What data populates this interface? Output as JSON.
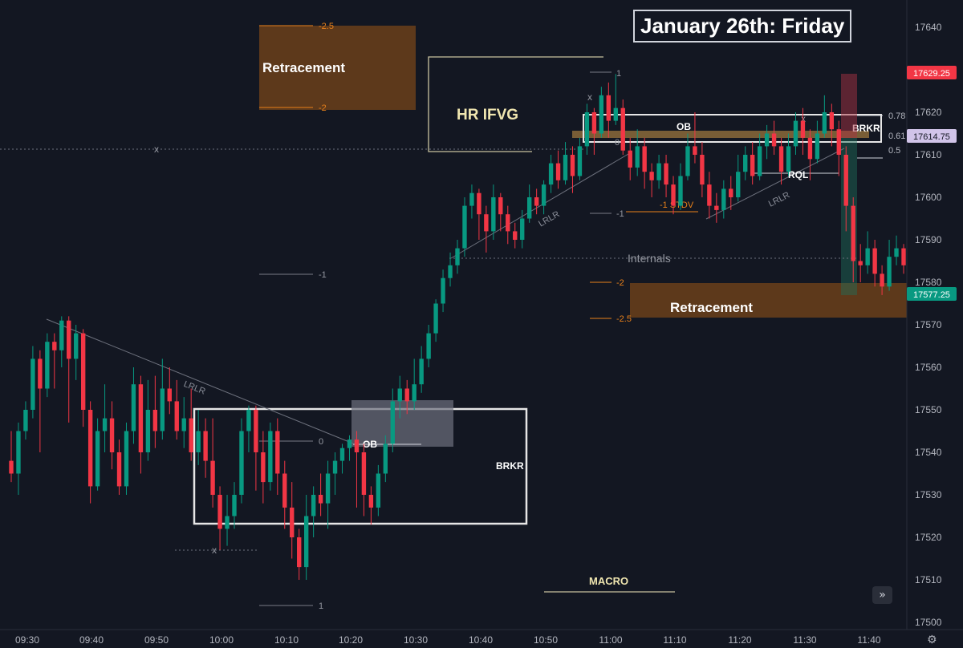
{
  "title": "January 26th: Friday",
  "chart_data": {
    "type": "candlestick",
    "yaxis": {
      "ticks": [
        17500,
        17510,
        17520,
        17530,
        17540,
        17550,
        17560,
        17570,
        17580,
        17590,
        17600,
        17610,
        17620,
        17630,
        17640
      ],
      "range": [
        17499,
        17642
      ]
    },
    "xaxis": {
      "ticks": [
        "09:30",
        "09:40",
        "09:50",
        "10:00",
        "10:10",
        "10:20",
        "10:30",
        "10:40",
        "10:50",
        "11:00",
        "11:10",
        "11:20",
        "11:30",
        "11:40"
      ]
    },
    "price_labels": [
      {
        "text": "17629.25",
        "color": "#f23645"
      },
      {
        "text": "17614.75",
        "color": "#d1c4e9"
      },
      {
        "text": "17577.25",
        "color": "#089981"
      }
    ],
    "candles": [
      [
        17538,
        17535,
        17545,
        17533
      ],
      [
        17535,
        17545,
        17547,
        17530
      ],
      [
        17545,
        17550,
        17552,
        17543
      ],
      [
        17550,
        17562,
        17565,
        17548
      ],
      [
        17562,
        17555,
        17564,
        17540
      ],
      [
        17555,
        17566,
        17568,
        17553
      ],
      [
        17566,
        17564,
        17568,
        17555
      ],
      [
        17564,
        17571,
        17572,
        17560
      ],
      [
        17571,
        17562,
        17572,
        17547
      ],
      [
        17562,
        17568,
        17570,
        17557
      ],
      [
        17568,
        17550,
        17569,
        17546
      ],
      [
        17550,
        17532,
        17552,
        17528
      ],
      [
        17532,
        17545,
        17548,
        17531
      ],
      [
        17545,
        17548,
        17556,
        17540
      ],
      [
        17548,
        17540,
        17552,
        17536
      ],
      [
        17540,
        17532,
        17543,
        17530
      ],
      [
        17532,
        17545,
        17547,
        17530
      ],
      [
        17545,
        17556,
        17560,
        17542
      ],
      [
        17556,
        17540,
        17558,
        17535
      ],
      [
        17540,
        17550,
        17557,
        17538
      ],
      [
        17550,
        17545,
        17558,
        17541
      ],
      [
        17545,
        17555,
        17562,
        17543
      ],
      [
        17555,
        17552,
        17560,
        17549
      ],
      [
        17552,
        17545,
        17557,
        17543
      ],
      [
        17545,
        17548,
        17553,
        17541
      ],
      [
        17548,
        17540,
        17555,
        17538
      ],
      [
        17540,
        17545,
        17550,
        17537
      ],
      [
        17545,
        17538,
        17548,
        17534
      ],
      [
        17538,
        17530,
        17548,
        17527
      ],
      [
        17530,
        17522,
        17532,
        17517
      ],
      [
        17522,
        17525,
        17530,
        17518
      ],
      [
        17525,
        17530,
        17533,
        17522
      ],
      [
        17530,
        17545,
        17548,
        17528
      ],
      [
        17545,
        17550,
        17551,
        17540
      ],
      [
        17550,
        17540,
        17551,
        17531
      ],
      [
        17540,
        17533,
        17545,
        17528
      ],
      [
        17533,
        17545,
        17547,
        17531
      ],
      [
        17545,
        17535,
        17548,
        17530
      ],
      [
        17535,
        17527,
        17538,
        17522
      ],
      [
        17527,
        17520,
        17533,
        17515
      ],
      [
        17520,
        17513,
        17522,
        17510
      ],
      [
        17513,
        17525,
        17530,
        17510
      ],
      [
        17525,
        17530,
        17532,
        17520
      ],
      [
        17530,
        17528,
        17535,
        17525
      ],
      [
        17528,
        17535,
        17538,
        17522
      ],
      [
        17535,
        17538,
        17540,
        17530
      ],
      [
        17538,
        17541,
        17542,
        17535
      ],
      [
        17541,
        17543,
        17544,
        17538
      ],
      [
        17543,
        17540,
        17545,
        17527
      ],
      [
        17540,
        17530,
        17542,
        17525
      ],
      [
        17530,
        17527,
        17532,
        17523
      ],
      [
        17527,
        17535,
        17537,
        17525
      ],
      [
        17535,
        17542,
        17544,
        17533
      ],
      [
        17542,
        17552,
        17555,
        17540
      ],
      [
        17552,
        17555,
        17558,
        17548
      ],
      [
        17555,
        17552,
        17557,
        17549
      ],
      [
        17552,
        17556,
        17562,
        17550
      ],
      [
        17556,
        17562,
        17565,
        17554
      ],
      [
        17562,
        17568,
        17570,
        17560
      ],
      [
        17568,
        17575,
        17576,
        17566
      ],
      [
        17575,
        17581,
        17583,
        17573
      ],
      [
        17581,
        17584,
        17587,
        17579
      ],
      [
        17584,
        17588,
        17590,
        17582
      ],
      [
        17588,
        17598,
        17600,
        17586
      ],
      [
        17598,
        17601,
        17603,
        17595
      ],
      [
        17601,
        17596,
        17602,
        17590
      ],
      [
        17596,
        17592,
        17598,
        17587
      ],
      [
        17592,
        17600,
        17603,
        17590
      ],
      [
        17600,
        17596,
        17601,
        17592
      ],
      [
        17596,
        17592,
        17598,
        17589
      ],
      [
        17592,
        17590,
        17594,
        17588
      ],
      [
        17590,
        17595,
        17597,
        17588
      ],
      [
        17595,
        17600,
        17603,
        17594
      ],
      [
        17600,
        17598,
        17602,
        17596
      ],
      [
        17598,
        17603,
        17604,
        17596
      ],
      [
        17603,
        17608,
        17610,
        17601
      ],
      [
        17608,
        17604,
        17611,
        17602
      ],
      [
        17604,
        17610,
        17613,
        17603
      ],
      [
        17610,
        17605,
        17612,
        17601
      ],
      [
        17605,
        17612,
        17614,
        17604
      ],
      [
        17612,
        17620,
        17622,
        17610
      ],
      [
        17620,
        17615,
        17621,
        17610
      ],
      [
        17615,
        17624,
        17626,
        17614
      ],
      [
        17624,
        17618,
        17627,
        17614
      ],
      [
        17618,
        17621,
        17629,
        17617
      ],
      [
        17621,
        17611,
        17623,
        17610
      ],
      [
        17611,
        17607,
        17614,
        17604
      ],
      [
        17607,
        17612,
        17616,
        17605
      ],
      [
        17612,
        17606,
        17614,
        17602
      ],
      [
        17606,
        17604,
        17608,
        17600
      ],
      [
        17604,
        17608,
        17610,
        17602
      ],
      [
        17608,
        17603,
        17610,
        17600
      ],
      [
        17603,
        17598,
        17605,
        17596
      ],
      [
        17598,
        17605,
        17608,
        17597
      ],
      [
        17605,
        17612,
        17615,
        17604
      ],
      [
        17612,
        17610,
        17620,
        17608
      ],
      [
        17610,
        17603,
        17613,
        17600
      ],
      [
        17603,
        17598,
        17606,
        17595
      ],
      [
        17598,
        17597,
        17601,
        17594
      ],
      [
        17597,
        17602,
        17604,
        17595
      ],
      [
        17602,
        17600,
        17605,
        17597
      ],
      [
        17600,
        17606,
        17610,
        17599
      ],
      [
        17606,
        17610,
        17612,
        17604
      ],
      [
        17610,
        17605,
        17613,
        17603
      ],
      [
        17605,
        17612,
        17615,
        17604
      ],
      [
        17612,
        17615,
        17617,
        17609
      ],
      [
        17615,
        17612,
        17618,
        17610
      ],
      [
        17612,
        17606,
        17614,
        17603
      ],
      [
        17606,
        17612,
        17615,
        17605
      ],
      [
        17612,
        17618,
        17620,
        17610
      ],
      [
        17618,
        17614,
        17621,
        17610
      ],
      [
        17614,
        17609,
        17616,
        17604
      ],
      [
        17609,
        17615,
        17618,
        17608
      ],
      [
        17615,
        17620,
        17624,
        17614
      ],
      [
        17620,
        17616,
        17622,
        17612
      ],
      [
        17616,
        17610,
        17618,
        17605
      ],
      [
        17610,
        17598,
        17612,
        17592
      ],
      [
        17598,
        17585,
        17600,
        17580
      ],
      [
        17585,
        17584,
        17589,
        17580
      ],
      [
        17584,
        17588,
        17592,
        17582
      ],
      [
        17588,
        17582,
        17590,
        17579
      ],
      [
        17582,
        17579,
        17584,
        17577
      ],
      [
        17579,
        17586,
        17590,
        17578
      ],
      [
        17586,
        17588,
        17591,
        17584
      ],
      [
        17588,
        17584,
        17589,
        17582
      ]
    ]
  },
  "annotations": {
    "hr_ifvg": "HR IFVG",
    "retracement_top": "Retracement",
    "retracement_bottom": "Retracement",
    "ob_left": "OB",
    "ob_right": "OB",
    "brkr_left": "BRKR",
    "brkr_right": "BRKR",
    "rql": "RQL",
    "internals": "Internals",
    "macro": "MACRO",
    "lrlr_1": "LRLR",
    "lrlr_2": "LRLR",
    "lrlr_3": "LRLR",
    "stdv": "-1 STDV",
    "fib_left": {
      "neg25": "-2.5",
      "neg2": "-2",
      "neg1": "-1",
      "zero": "0",
      "one": "1"
    },
    "fib_right": {
      "one": "1",
      "zero": "0",
      "neg1": "-1",
      "neg2": "-2",
      "neg25": "-2.5"
    },
    "fib_levels": {
      "l078": "0.78",
      "l061": "0.61",
      "l05": "0.5"
    },
    "x_marks": "x"
  },
  "controls": {
    "jump_icon": "double-chevron-right-icon",
    "settings_icon": "gear-icon"
  }
}
